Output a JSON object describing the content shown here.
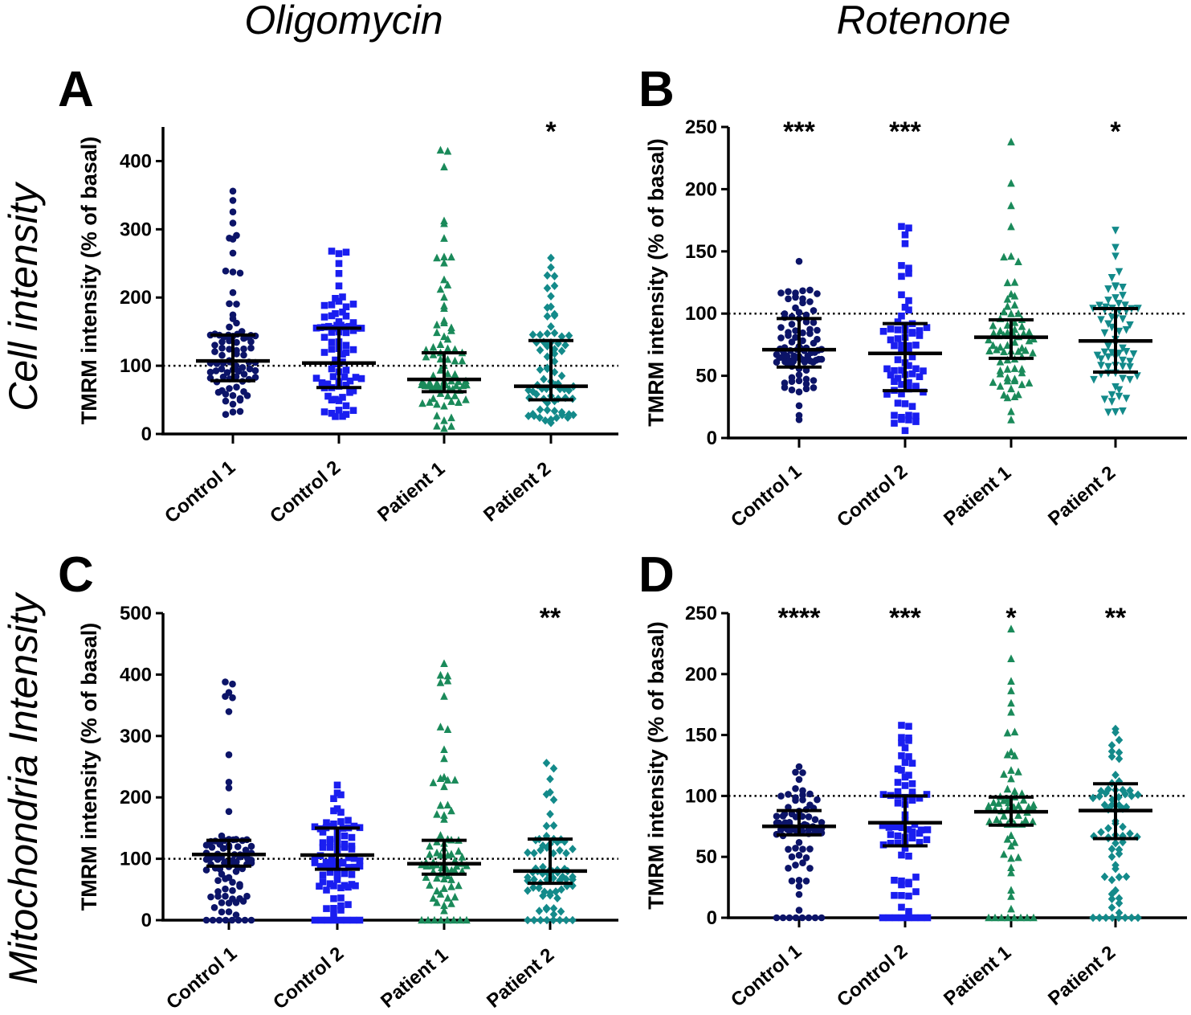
{
  "column_titles": [
    "Oligomycin",
    "Rotenone"
  ],
  "row_titles": [
    "Cell intensity",
    "Mitochondria Intensity"
  ],
  "colors": {
    "Control 1": "#0c1468",
    "Control 2": "#1a1ef0",
    "Patient 1": "#1a8a5a",
    "Patient 2": "#138a8a",
    "axis": "#000000",
    "summary": "#000000"
  },
  "marker_shapes": {
    "Control 1": "circle",
    "Control 2": "square",
    "Patient 1": "triangle-up",
    "Patient 2": "diamond-or-triangle-down"
  },
  "chart_data": [
    {
      "panel": "A",
      "type": "scatter",
      "subtype": "dot-plot with median and interquartile range",
      "treatment": "Oligomycin",
      "measure": "Cell intensity",
      "ylabel": "TMRM intensity (% of basal)",
      "ylim": [
        0,
        450
      ],
      "yticks": [
        0,
        100,
        200,
        300,
        400
      ],
      "reference_line": 100,
      "categories": [
        "Control 1",
        "Control 2",
        "Patient 1",
        "Patient 2"
      ],
      "medians": [
        107,
        104,
        80,
        70
      ],
      "q1": [
        78,
        68,
        62,
        50
      ],
      "q3": [
        145,
        155,
        119,
        137
      ],
      "significance": [
        "",
        "",
        "",
        "*"
      ],
      "y_range_approx": [
        [
          14,
          356
        ],
        [
          10,
          268
        ],
        [
          3,
          416
        ],
        [
          5,
          258
        ]
      ],
      "n_approx": [
        85,
        80,
        80,
        75
      ]
    },
    {
      "panel": "B",
      "type": "scatter",
      "subtype": "dot-plot with median and interquartile range",
      "treatment": "Rotenone",
      "measure": "Cell intensity",
      "ylabel": "TMRM intensity (% of basal)",
      "ylim": [
        0,
        250
      ],
      "yticks": [
        0,
        50,
        100,
        150,
        200,
        250
      ],
      "reference_line": 100,
      "categories": [
        "Control 1",
        "Control 2",
        "Patient 1",
        "Patient 2"
      ],
      "medians": [
        71,
        68,
        81,
        78
      ],
      "q1": [
        57,
        38,
        64,
        53
      ],
      "q3": [
        96,
        92,
        95,
        104
      ],
      "significance": [
        "***",
        "***",
        "",
        "*"
      ],
      "y_range_approx": [
        [
          14,
          142
        ],
        [
          3,
          170
        ],
        [
          12,
          238
        ],
        [
          13,
          167
        ]
      ],
      "n_approx": [
        90,
        70,
        75,
        70
      ]
    },
    {
      "panel": "C",
      "type": "scatter",
      "subtype": "dot-plot with median and interquartile range",
      "treatment": "Oligomycin",
      "measure": "Mitochondria Intensity",
      "ylabel": "TMRM intensity (% of basal)",
      "ylim": [
        0,
        500
      ],
      "yticks": [
        0,
        100,
        200,
        300,
        400,
        500
      ],
      "reference_line": 100,
      "categories": [
        "Control 1",
        "Control 2",
        "Patient 1",
        "Patient 2"
      ],
      "medians": [
        107,
        106,
        92,
        80
      ],
      "q1": [
        88,
        83,
        75,
        60
      ],
      "q3": [
        130,
        150,
        130,
        132
      ],
      "significance": [
        "",
        "",
        "",
        "**"
      ],
      "y_range_approx": [
        [
          0,
          388
        ],
        [
          0,
          220
        ],
        [
          0,
          418
        ],
        [
          0,
          256
        ]
      ],
      "n_approx": [
        90,
        85,
        80,
        75
      ]
    },
    {
      "panel": "D",
      "type": "scatter",
      "subtype": "dot-plot with median and interquartile range",
      "treatment": "Rotenone",
      "measure": "Mitochondria Intensity",
      "ylabel": "TMRM intensity (% of basal)",
      "ylim": [
        0,
        250
      ],
      "yticks": [
        0,
        50,
        100,
        150,
        200,
        250
      ],
      "reference_line": 100,
      "categories": [
        "Control 1",
        "Control 2",
        "Patient 1",
        "Patient 2"
      ],
      "medians": [
        75,
        78,
        87,
        88
      ],
      "q1": [
        68,
        59,
        76,
        65
      ],
      "q3": [
        88,
        100,
        99,
        110
      ],
      "significance": [
        "****",
        "***",
        "*",
        "**"
      ],
      "y_range_approx": [
        [
          0,
          124
        ],
        [
          0,
          158
        ],
        [
          0,
          237
        ],
        [
          0,
          155
        ]
      ],
      "n_approx": [
        85,
        75,
        70,
        70
      ]
    }
  ]
}
